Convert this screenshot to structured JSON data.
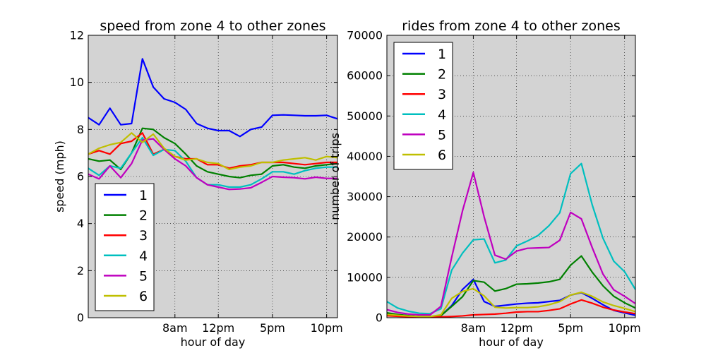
{
  "chart_data": [
    {
      "type": "line",
      "title": "speed from zone 4 to other zones",
      "xlabel": "hour of day",
      "ylabel": "speed (mph)",
      "xlim": [
        0,
        23
      ],
      "ylim": [
        0,
        12
      ],
      "yticks": [
        0,
        2,
        4,
        6,
        8,
        10,
        12
      ],
      "xticks": [
        {
          "x": 8,
          "label": "8am"
        },
        {
          "x": 12,
          "label": "12pm"
        },
        {
          "x": 17,
          "label": "5pm"
        },
        {
          "x": 22,
          "label": "10pm"
        }
      ],
      "grid": true,
      "background": "#d3d3d3",
      "legend_position": "lower-left",
      "x": [
        0,
        1,
        2,
        3,
        4,
        5,
        6,
        7,
        8,
        9,
        10,
        11,
        12,
        13,
        14,
        15,
        16,
        17,
        18,
        19,
        20,
        21,
        22,
        23
      ],
      "series": [
        {
          "name": "1",
          "color": "#0000ff",
          "values": [
            8.5,
            8.2,
            8.9,
            8.2,
            8.25,
            11.0,
            9.8,
            9.3,
            9.15,
            8.85,
            8.25,
            8.05,
            7.95,
            7.95,
            7.7,
            8.0,
            8.1,
            8.6,
            8.62,
            8.6,
            8.58,
            8.58,
            8.6,
            8.45
          ]
        },
        {
          "name": "2",
          "color": "#008000",
          "values": [
            6.75,
            6.65,
            6.7,
            6.3,
            7.0,
            8.05,
            8.0,
            7.65,
            7.4,
            6.95,
            6.45,
            6.2,
            6.1,
            6.0,
            5.95,
            6.05,
            6.1,
            6.45,
            6.5,
            6.4,
            6.35,
            6.45,
            6.5,
            6.55
          ]
        },
        {
          "name": "3",
          "color": "#ff0000",
          "values": [
            6.95,
            7.1,
            6.95,
            7.4,
            7.5,
            7.85,
            6.95,
            7.15,
            6.85,
            6.75,
            6.75,
            6.5,
            6.5,
            6.35,
            6.45,
            6.5,
            6.6,
            6.6,
            6.6,
            6.55,
            6.5,
            6.55,
            6.6,
            6.6
          ]
        },
        {
          "name": "4",
          "color": "#00bfbf",
          "values": [
            6.35,
            6.05,
            6.45,
            6.35,
            7.0,
            7.65,
            6.9,
            7.15,
            7.1,
            6.65,
            5.95,
            5.65,
            5.65,
            5.55,
            5.55,
            5.65,
            5.9,
            6.2,
            6.2,
            6.1,
            6.25,
            6.35,
            6.4,
            6.4
          ]
        },
        {
          "name": "5",
          "color": "#bf00bf",
          "values": [
            6.1,
            5.9,
            6.45,
            5.95,
            6.55,
            7.55,
            7.6,
            7.15,
            6.75,
            6.45,
            5.95,
            5.65,
            5.55,
            5.45,
            5.47,
            5.52,
            5.75,
            6.0,
            5.97,
            5.95,
            5.9,
            5.97,
            5.92,
            5.92
          ]
        },
        {
          "name": "6",
          "color": "#bfbf00",
          "values": [
            6.95,
            7.2,
            7.35,
            7.45,
            7.85,
            7.45,
            7.8,
            7.2,
            6.85,
            6.7,
            6.75,
            6.6,
            6.55,
            6.3,
            6.4,
            6.45,
            6.6,
            6.6,
            6.7,
            6.75,
            6.8,
            6.7,
            6.85,
            6.8
          ]
        }
      ]
    },
    {
      "type": "line",
      "title": "rides from zone 4 to other zones",
      "xlabel": "hour of day",
      "ylabel": "number of trips",
      "xlim": [
        0,
        23
      ],
      "ylim": [
        0,
        70000
      ],
      "yticks": [
        0,
        10000,
        20000,
        30000,
        40000,
        50000,
        60000,
        70000
      ],
      "xticks": [
        {
          "x": 8,
          "label": "8am"
        },
        {
          "x": 12,
          "label": "12pm"
        },
        {
          "x": 17,
          "label": "5pm"
        },
        {
          "x": 22,
          "label": "10pm"
        }
      ],
      "grid": true,
      "background": "#d3d3d3",
      "legend_position": "upper-left",
      "x": [
        0,
        1,
        2,
        3,
        4,
        5,
        6,
        7,
        8,
        9,
        10,
        11,
        12,
        13,
        14,
        15,
        16,
        17,
        18,
        19,
        20,
        21,
        22,
        23
      ],
      "series": [
        {
          "name": "1",
          "color": "#0000ff",
          "values": [
            900,
            600,
            400,
            300,
            300,
            500,
            3000,
            7000,
            9500,
            4000,
            2800,
            3100,
            3400,
            3600,
            3700,
            4000,
            4300,
            5600,
            6200,
            4800,
            3200,
            1800,
            1200,
            600
          ]
        },
        {
          "name": "2",
          "color": "#008000",
          "values": [
            1200,
            800,
            500,
            300,
            300,
            500,
            2800,
            5200,
            9200,
            8800,
            6600,
            7200,
            8300,
            8400,
            8600,
            8900,
            9500,
            13000,
            15300,
            11300,
            7900,
            5300,
            3700,
            2400
          ]
        },
        {
          "name": "3",
          "color": "#ff0000",
          "values": [
            500,
            350,
            250,
            200,
            150,
            200,
            300,
            450,
            700,
            800,
            900,
            1100,
            1400,
            1500,
            1500,
            1800,
            2200,
            3400,
            4400,
            3600,
            2600,
            1900,
            1400,
            1000
          ]
        },
        {
          "name": "4",
          "color": "#00bfbf",
          "values": [
            4000,
            2400,
            1600,
            1100,
            1000,
            2200,
            11800,
            16000,
            19300,
            19500,
            13600,
            14300,
            17800,
            19000,
            20400,
            22800,
            26000,
            35700,
            38200,
            28000,
            19700,
            14000,
            11400,
            7000
          ]
        },
        {
          "name": "5",
          "color": "#bf00bf",
          "values": [
            2000,
            1300,
            900,
            700,
            700,
            2800,
            15000,
            26500,
            36000,
            25000,
            15500,
            14500,
            16500,
            17200,
            17300,
            17400,
            19200,
            26100,
            24500,
            17400,
            10800,
            6900,
            5300,
            3500
          ]
        },
        {
          "name": "6",
          "color": "#bfbf00",
          "values": [
            800,
            600,
            400,
            300,
            300,
            700,
            4800,
            6500,
            7200,
            5400,
            2600,
            2400,
            2500,
            2500,
            2700,
            3200,
            4000,
            5600,
            6300,
            5300,
            3900,
            3000,
            2300,
            1500
          ]
        }
      ]
    }
  ]
}
